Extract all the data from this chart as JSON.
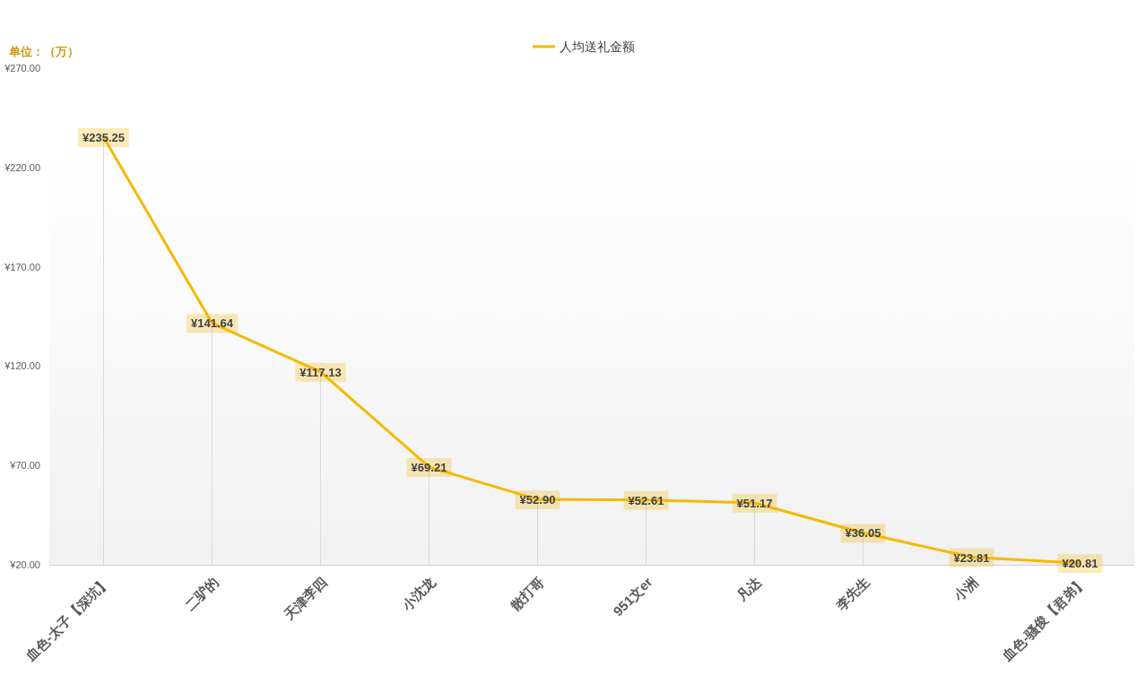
{
  "chart_data": {
    "type": "line",
    "annotations": [
      "单位：（万）"
    ],
    "categories": [
      "血色-太子【深坑】",
      "二驴的",
      "天津李四",
      "小沈龙",
      "散打哥",
      "951文er",
      "凡达",
      "李先生",
      "小洲",
      "血色-骚俊【君弟】"
    ],
    "series": [
      {
        "name": "人均送礼金额",
        "color": "#f5b800",
        "values": [
          235.25,
          141.64,
          117.13,
          69.21,
          52.9,
          52.61,
          51.17,
          36.05,
          23.81,
          20.81
        ],
        "value_labels": [
          "¥235.25",
          "¥141.64",
          "¥117.13",
          "¥69.21",
          "¥52.90",
          "¥52.61",
          "¥51.17",
          "¥36.05",
          "¥23.81",
          "¥20.81"
        ]
      }
    ],
    "ylim": [
      20,
      270
    ],
    "yticks": [
      {
        "value": 20,
        "label": "¥20.00"
      },
      {
        "value": 70,
        "label": "¥70.00"
      },
      {
        "value": 120,
        "label": "¥120.00"
      },
      {
        "value": 170,
        "label": "¥170.00"
      },
      {
        "value": 220,
        "label": "¥220.00"
      },
      {
        "value": 270,
        "label": "¥270.00"
      }
    ],
    "legend": "top",
    "marker": "none",
    "line_style": "solid"
  }
}
